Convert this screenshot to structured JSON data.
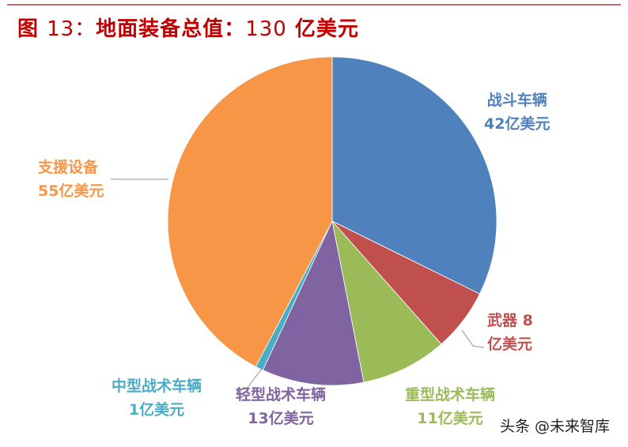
{
  "header": {
    "figure_label": "图",
    "figure_number": "13：",
    "title_text": "地面装备总值：",
    "total_value": "130",
    "total_unit": "亿美元"
  },
  "chart_data": {
    "type": "pie",
    "title": "图 13：地面装备总值：130 亿美元",
    "unit": "亿美元",
    "total": 130,
    "start_angle": "12 o'clock, clockwise",
    "categories": [
      "战斗车辆",
      "武器",
      "重型战术车辆",
      "轻型战术车辆",
      "中型战术车辆",
      "支援设备"
    ],
    "values": [
      42,
      8,
      11,
      13,
      1,
      55
    ],
    "colors": [
      "#4f81bd",
      "#c0504d",
      "#9bbb59",
      "#8064a2",
      "#4bacc6",
      "#f79646"
    ],
    "labels": [
      {
        "name": "战斗车辆",
        "value_text": "42亿美元"
      },
      {
        "name": "武器 8",
        "value_text": "亿美元"
      },
      {
        "name": "重型战术车辆",
        "value_text": "11亿美元"
      },
      {
        "name": "轻型战术车辆",
        "value_text": "13亿美元"
      },
      {
        "name": "中型战术车辆",
        "value_text": "1亿美元"
      },
      {
        "name": "支援设备",
        "value_text": "55亿美元"
      }
    ],
    "legend": "none (data labels)"
  },
  "watermark": "头条 @未来智库"
}
